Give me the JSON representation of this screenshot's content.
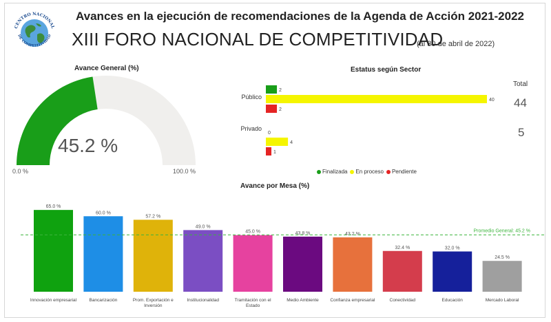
{
  "header": {
    "logo_text": "CENTRO NACIONAL DE COMPETITIVIDAD",
    "title": "Avances en la ejecución de recomendaciones de la Agenda de Acción 2021-2022",
    "subtitle": "XIII FORO NACIONAL DE COMPETITIVIDAD",
    "date_note": "(al 30 de abril de 2022)"
  },
  "gauge": {
    "title": "Avance General (%)",
    "value": 45.2,
    "value_label": "45.2 %",
    "min_label": "0.0 %",
    "max_label": "100.0 %",
    "fill_color": "#199e19",
    "track_color": "#f0efed"
  },
  "chart_data": [
    {
      "type": "bar",
      "orientation": "horizontal",
      "title": "Estatus según Sector",
      "categories": [
        "Público",
        "Privado"
      ],
      "series": [
        {
          "name": "Finalizada",
          "color": "#199e19",
          "values": [
            2,
            0
          ]
        },
        {
          "name": "En proceso",
          "color": "#f5f500",
          "values": [
            40,
            4
          ]
        },
        {
          "name": "Pendiente",
          "color": "#e52424",
          "values": [
            2,
            1
          ]
        }
      ],
      "total_label": "Total",
      "totals": [
        44,
        5
      ],
      "legend": "bottom"
    },
    {
      "type": "bar",
      "title": "Avance por Mesa (%)",
      "categories": [
        "Innovación empresarial",
        "Bancarización",
        "Prom. Exportación e Inversión",
        "Institucionalidad",
        "Tramitación con el Estado",
        "Medio Ambiente",
        "Confianza empresarial",
        "Conectividad",
        "Educación",
        "Mercado Laboral"
      ],
      "category_lines": [
        [
          "Innovación empresarial"
        ],
        [
          "Bancarización"
        ],
        [
          "Prom. Exportación e",
          "Inversión"
        ],
        [
          "Institucionalidad"
        ],
        [
          "Tramitación con el",
          "Estado"
        ],
        [
          "Medio Ambiente"
        ],
        [
          "Confianza empresarial"
        ],
        [
          "Conectividad"
        ],
        [
          "Educación"
        ],
        [
          "Mercado Laboral"
        ]
      ],
      "values": [
        65.0,
        60.0,
        57.2,
        49.0,
        45.0,
        43.8,
        43.2,
        32.4,
        32.0,
        24.5
      ],
      "value_labels": [
        "65.0 %",
        "60.0 %",
        "57.2 %",
        "49.0 %",
        "45.0 %",
        "43.8 %",
        "43.2 %",
        "32.4 %",
        "32.0 %",
        "24.5 %"
      ],
      "colors": [
        "#0fa20f",
        "#1e8ee6",
        "#dfb30a",
        "#7b4ec3",
        "#e6429f",
        "#6b0a80",
        "#e7713c",
        "#d43d4c",
        "#15209b",
        "#9f9f9f"
      ],
      "ylim": [
        0,
        70
      ],
      "reference_line": {
        "value": 45.2,
        "label": "Promedio General: 45.2 %",
        "color": "#3cb43c"
      }
    }
  ]
}
